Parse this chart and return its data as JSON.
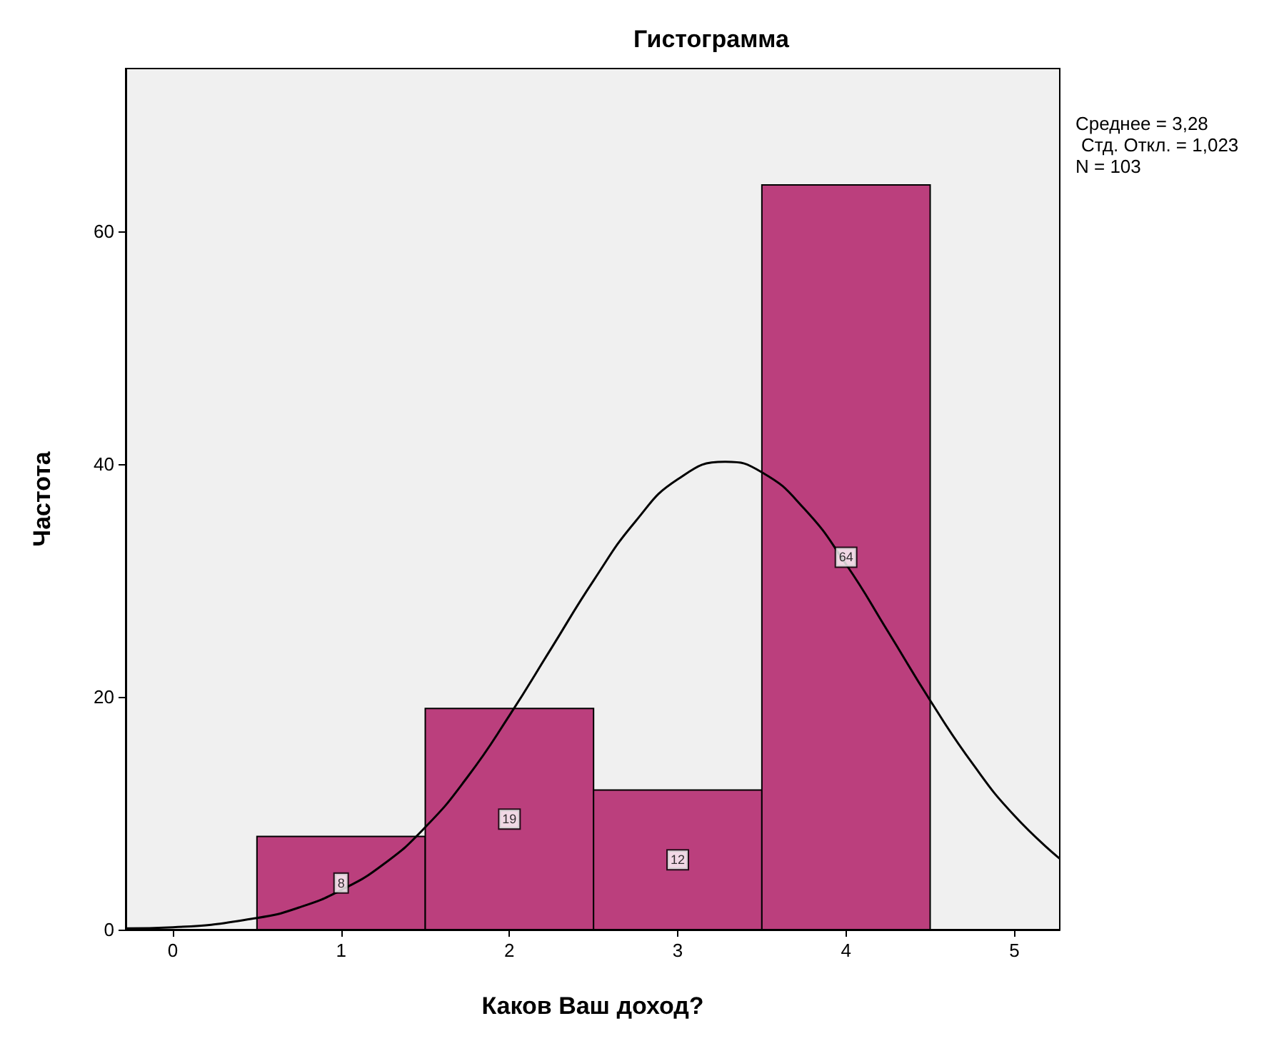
{
  "chart_data": {
    "type": "histogram",
    "title": "Гистограмма",
    "xlabel": "Каков Ваш доход?",
    "ylabel": "Частота",
    "bins": [
      0.5,
      1.5,
      2.5,
      3.5,
      4.5
    ],
    "values": [
      8,
      19,
      12,
      64
    ],
    "color": "#bb3f7d",
    "value_labels": [
      "8",
      "19",
      "12",
      "64"
    ],
    "series": [
      {
        "type": "line",
        "color": "#000000",
        "x": [
          -0.28,
          0,
          0.5,
          0.75,
          1,
          1.25,
          1.5,
          1.75,
          2,
          2.25,
          2.5,
          2.75,
          3,
          3.28,
          3.5,
          3.75,
          4,
          4.25,
          4.5,
          4.75,
          5,
          5.27
        ],
        "values": [
          0.1,
          0.2,
          1.0,
          1.9,
          3.4,
          5.6,
          8.8,
          13.1,
          18.4,
          24.2,
          30.0,
          35.1,
          38.7,
          40.2,
          39.3,
          36.2,
          31.4,
          25.6,
          19.7,
          14.3,
          9.8,
          6.1
        ]
      }
    ],
    "xlim": [
      -0.28,
      5.27
    ],
    "xticks": [
      0,
      1,
      2,
      3,
      4,
      5
    ],
    "ylim": [
      0,
      74
    ],
    "yticks": [
      0,
      20,
      40,
      60
    ],
    "annotations": [
      "Среднее = 3,28",
      "Стд. Откл. = 1,023",
      "N = 103"
    ],
    "grid": false,
    "marker": "none",
    "line_style": "solid"
  }
}
